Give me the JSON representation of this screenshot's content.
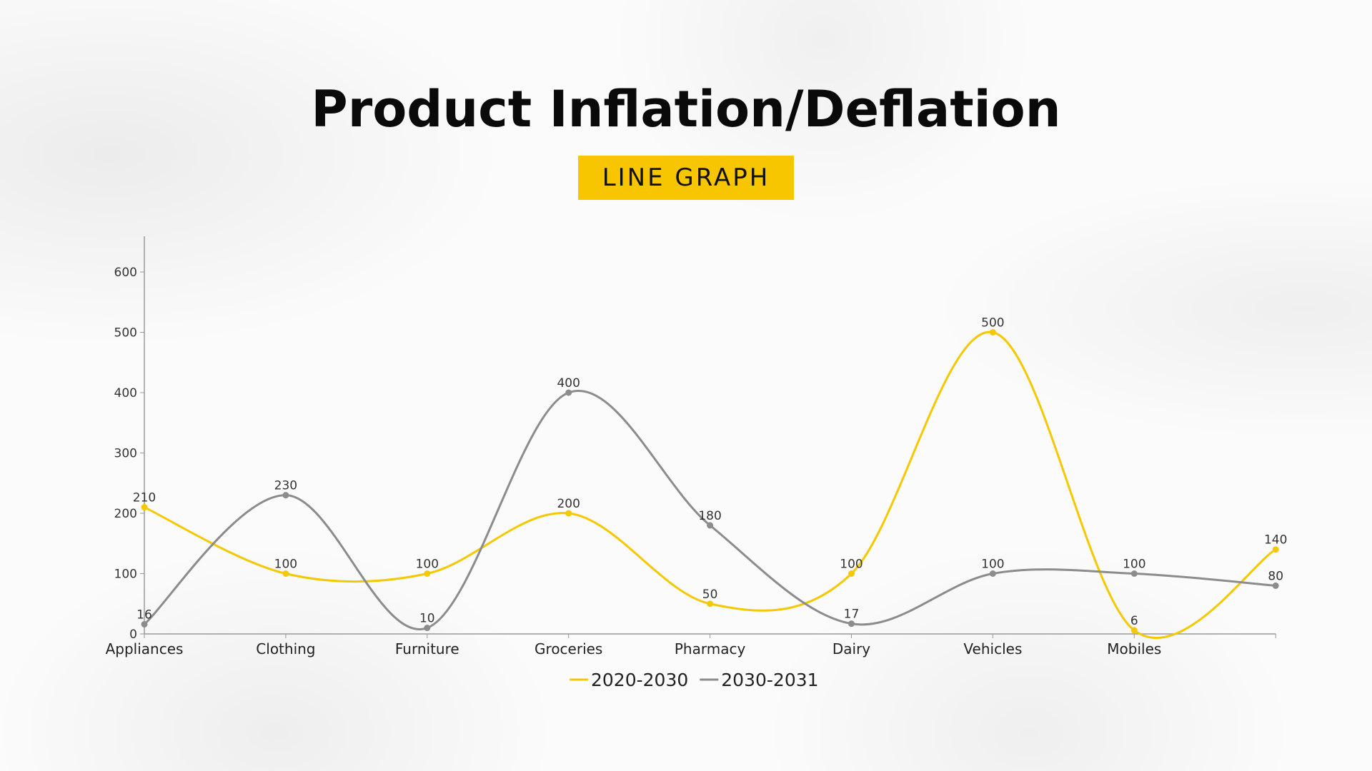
{
  "title": "Product Inflation/Deflation",
  "subtitle": "LINE GRAPH",
  "chart_data": {
    "type": "line",
    "title": "",
    "xlabel": "",
    "ylabel": "",
    "categories": [
      "Appliances",
      "Clothing",
      "Furniture",
      "Groceries",
      "Pharmacy",
      "Dairy",
      "Vehicles",
      "Mobiles",
      ""
    ],
    "ylim": [
      0,
      600
    ],
    "yticks": [
      0,
      100,
      200,
      300,
      400,
      500,
      600
    ],
    "grid": false,
    "smooth": true,
    "data_labels": true,
    "legend": "bottom",
    "series": [
      {
        "name": "2020-2030",
        "color": "#f5c800",
        "values": [
          210,
          100,
          100,
          200,
          50,
          100,
          500,
          6,
          140
        ]
      },
      {
        "name": "2030-2031",
        "color": "#8c8c8c",
        "values": [
          16,
          230,
          10,
          400,
          180,
          17,
          100,
          100,
          80
        ]
      }
    ]
  }
}
